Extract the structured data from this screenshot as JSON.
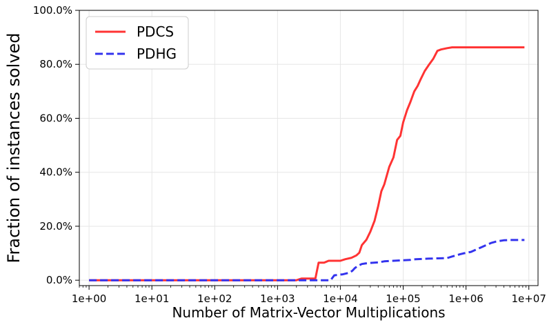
{
  "chart_data": {
    "type": "line",
    "title": "",
    "xlabel": "Number of Matrix-Vector Multiplications",
    "ylabel": "Fraction of instances solved",
    "x_scale": "log",
    "xlim": [
      0.7,
      14000000
    ],
    "ylim": [
      -2,
      100
    ],
    "grid": true,
    "legend_position": "top-left",
    "x_ticks": [
      1,
      10,
      100,
      1000,
      10000,
      100000,
      1000000,
      10000000
    ],
    "x_tick_labels": [
      "1e+00",
      "1e+01",
      "1e+02",
      "1e+03",
      "1e+04",
      "1e+05",
      "1e+06",
      "1e+07"
    ],
    "y_ticks": [
      0,
      20,
      40,
      60,
      80,
      100
    ],
    "y_tick_labels": [
      "0.0%",
      "20.0%",
      "40.0%",
      "60.0%",
      "80.0%",
      "100.0%"
    ],
    "series": [
      {
        "name": "PDCS",
        "color": "#ff3333",
        "dash": "solid",
        "x": [
          1,
          2000,
          2400,
          4000,
          4500,
          5500,
          6500,
          10000,
          12000,
          15000,
          18000,
          20000,
          22000,
          26000,
          30000,
          35000,
          40000,
          45000,
          50000,
          60000,
          70000,
          80000,
          90000,
          100000,
          115000,
          130000,
          150000,
          170000,
          190000,
          220000,
          260000,
          300000,
          350000,
          400000,
          500000,
          600000,
          700000,
          1000000,
          3000000,
          8500000
        ],
        "values": [
          0,
          0,
          0.6,
          0.6,
          6.5,
          6.5,
          7.2,
          7.2,
          7.8,
          8.3,
          9.2,
          10.2,
          13,
          15,
          18,
          22,
          27.5,
          33,
          35.5,
          42,
          45.5,
          52,
          53.5,
          58.5,
          63,
          66,
          70,
          72,
          74.5,
          77.5,
          80,
          82,
          85,
          85.5,
          86,
          86.3,
          86.3,
          86.3,
          86.3,
          86.3
        ]
      },
      {
        "name": "PDHG",
        "color": "#3333ee",
        "dash": "dashed",
        "x": [
          1,
          7000,
          8000,
          11000,
          14000,
          15500,
          17000,
          19000,
          22000,
          25000,
          30000,
          40000,
          50000,
          70000,
          100000,
          130000,
          160000,
          250000,
          350000,
          500000,
          600000,
          700000,
          800000,
          900000,
          1200000,
          1600000,
          2000000,
          2500000,
          3000000,
          3500000,
          4000000,
          5000000,
          8500000
        ],
        "values": [
          0,
          0,
          1.8,
          2.2,
          2.8,
          3.5,
          4.5,
          5.3,
          6.0,
          6.2,
          6.4,
          6.6,
          7.0,
          7.2,
          7.4,
          7.5,
          7.8,
          8.0,
          8.1,
          8.2,
          8.8,
          9.2,
          9.6,
          9.9,
          10.5,
          11.8,
          12.8,
          13.8,
          14.3,
          14.6,
          14.8,
          14.9,
          14.9
        ]
      }
    ]
  }
}
